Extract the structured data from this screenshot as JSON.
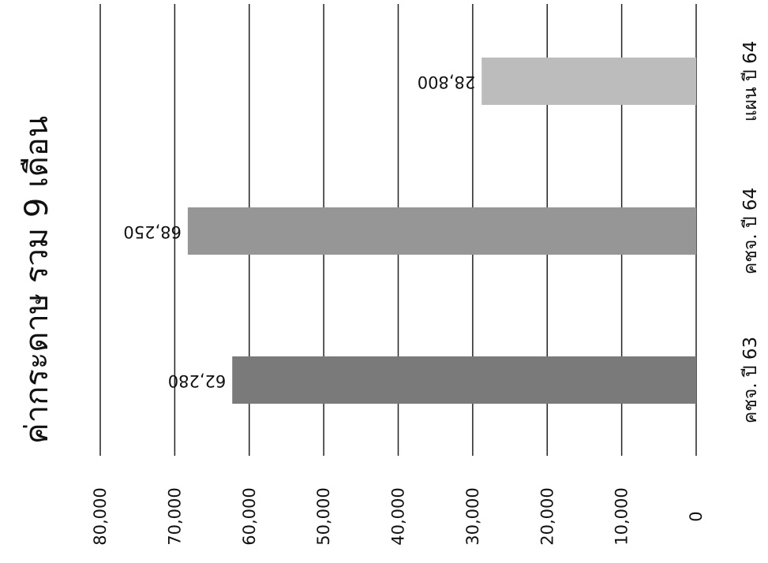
{
  "chart_data": {
    "type": "bar",
    "orientation": "rotated-90",
    "title": "ค่ากระดาษ รวม 9 เดือน",
    "categories": [
      "คชจ. ปี 63",
      "คชจ. ปี 64",
      "แผน ปี 64"
    ],
    "values": [
      62280,
      68250,
      28800
    ],
    "data_labels": [
      "62,280",
      "68,250",
      "28,800"
    ],
    "value_ticks": [
      "0",
      "10,000",
      "20,000",
      "30,000",
      "40,000",
      "50,000",
      "60,000",
      "70,000",
      "80,000"
    ],
    "ylim": [
      0,
      80000
    ],
    "grid": true,
    "colors": [
      "#7a7a7a",
      "#969696",
      "#bcbcbc"
    ]
  }
}
